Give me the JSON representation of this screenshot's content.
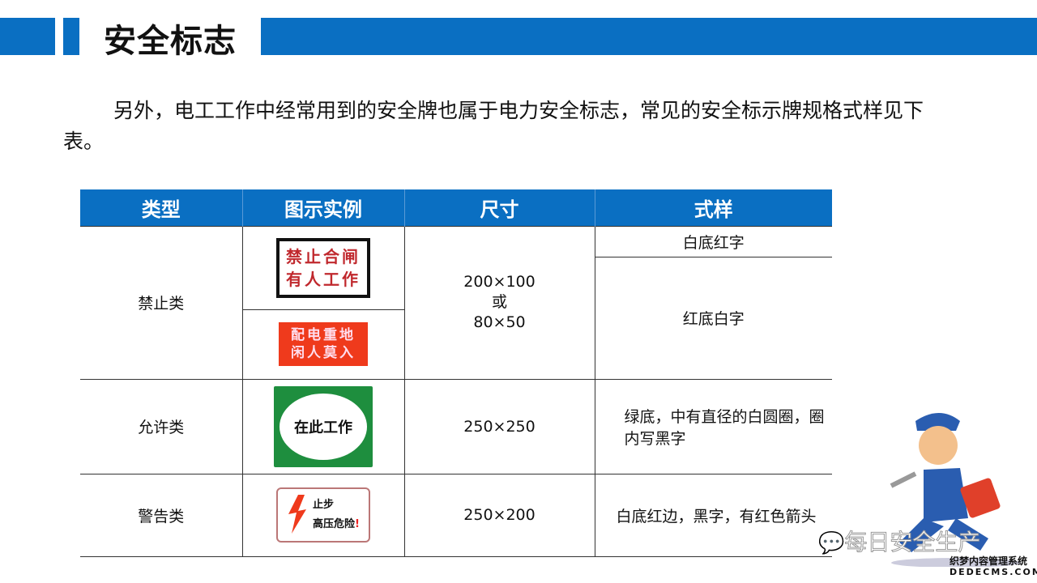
{
  "header": {
    "title": "安全标志",
    "accent": "#0a6fc2"
  },
  "intro": "另外，电工工作中经常用到的安全牌也属于电力安全标志，常见的安全标示牌规格式样见下表。",
  "table": {
    "headers": [
      "类型",
      "图示实例",
      "尺寸",
      "式样"
    ],
    "rows": [
      {
        "type": "禁止类",
        "size": [
          "200×100",
          "或",
          "80×50"
        ],
        "signs": [
          {
            "text": [
              "禁止合闸",
              "有人工作"
            ],
            "style": "白底红字"
          },
          {
            "text": [
              "配电重地",
              "闲人莫入"
            ],
            "style": "红底白字"
          }
        ]
      },
      {
        "type": "允许类",
        "size": [
          "250×250"
        ],
        "signs": [
          {
            "text": [
              "在此工作"
            ],
            "style": "绿底，中有直径的白圆圈，圈内写黑字"
          }
        ]
      },
      {
        "type": "警告类",
        "size": [
          "250×200"
        ],
        "signs": [
          {
            "text": [
              "止步",
              "高压危险"
            ],
            "style": "白底红边，黑字，有红色箭头"
          }
        ]
      }
    ]
  },
  "watermark": {
    "wechat": "每日安全生产",
    "cms": "织梦内容管理系统",
    "cms_url": "DEDECMS.COM"
  }
}
